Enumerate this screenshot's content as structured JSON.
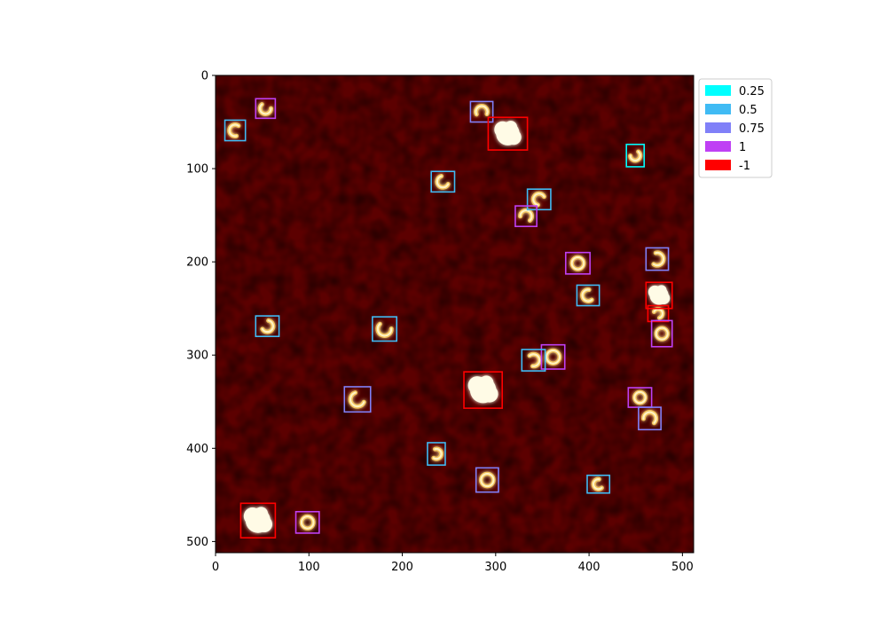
{
  "chart_data": {
    "type": "image",
    "title": "",
    "xlabel": "",
    "ylabel": "",
    "xlim": [
      0,
      512
    ],
    "ylim": [
      512,
      0
    ],
    "x_ticks": [
      "0",
      "100",
      "200",
      "300",
      "400",
      "500"
    ],
    "y_ticks": [
      "0",
      "100",
      "200",
      "300",
      "400",
      "500"
    ],
    "x_tick_values": [
      0,
      100,
      200,
      300,
      400,
      500
    ],
    "y_tick_values": [
      0,
      100,
      200,
      300,
      400,
      500
    ],
    "background_color": "#5c0000",
    "legend": {
      "placement": "upper-right-outside",
      "entries": [
        {
          "label": "0.25",
          "color": "#00ffff"
        },
        {
          "label": "0.5",
          "color": "#40bbf4"
        },
        {
          "label": "0.75",
          "color": "#8080f8"
        },
        {
          "label": "1",
          "color": "#bf40f4"
        },
        {
          "label": "-1",
          "color": "#ff0000"
        }
      ]
    },
    "boxes": [
      {
        "x0": 43,
        "y0": 25,
        "x1": 64,
        "y1": 46,
        "label": "1",
        "shape": "arc"
      },
      {
        "x0": 10,
        "y0": 48,
        "x1": 32,
        "y1": 70,
        "label": "0.5",
        "shape": "arc"
      },
      {
        "x0": 273,
        "y0": 28,
        "x1": 297,
        "y1": 50,
        "label": "0.75",
        "shape": "arc"
      },
      {
        "x0": 292,
        "y0": 45,
        "x1": 334,
        "y1": 80,
        "label": "-1",
        "shape": "blob"
      },
      {
        "x0": 440,
        "y0": 74,
        "x1": 459,
        "y1": 98,
        "label": "0.25",
        "shape": "arc"
      },
      {
        "x0": 231,
        "y0": 103,
        "x1": 256,
        "y1": 125,
        "label": "0.5",
        "shape": "arc"
      },
      {
        "x0": 334,
        "y0": 122,
        "x1": 359,
        "y1": 144,
        "label": "0.5",
        "shape": "arc"
      },
      {
        "x0": 321,
        "y0": 140,
        "x1": 344,
        "y1": 162,
        "label": "1",
        "shape": "arc"
      },
      {
        "x0": 461,
        "y0": 185,
        "x1": 485,
        "y1": 209,
        "label": "0.75",
        "shape": "arc"
      },
      {
        "x0": 375,
        "y0": 190,
        "x1": 401,
        "y1": 213,
        "label": "1",
        "shape": "ring"
      },
      {
        "x0": 387,
        "y0": 225,
        "x1": 411,
        "y1": 247,
        "label": "0.5",
        "shape": "arc"
      },
      {
        "x0": 461,
        "y0": 222,
        "x1": 489,
        "y1": 250,
        "label": "-1",
        "shape": "blob"
      },
      {
        "x0": 463,
        "y0": 247,
        "x1": 485,
        "y1": 264,
        "label": "-1",
        "shape": "arc"
      },
      {
        "x0": 43,
        "y0": 258,
        "x1": 68,
        "y1": 280,
        "label": "0.5",
        "shape": "arc"
      },
      {
        "x0": 168,
        "y0": 259,
        "x1": 194,
        "y1": 285,
        "label": "0.5",
        "shape": "arc"
      },
      {
        "x0": 467,
        "y0": 263,
        "x1": 489,
        "y1": 291,
        "label": "1",
        "shape": "ring"
      },
      {
        "x0": 349,
        "y0": 289,
        "x1": 374,
        "y1": 315,
        "label": "1",
        "shape": "ring"
      },
      {
        "x0": 328,
        "y0": 294,
        "x1": 353,
        "y1": 317,
        "label": "0.5",
        "shape": "arc"
      },
      {
        "x0": 266,
        "y0": 318,
        "x1": 307,
        "y1": 357,
        "label": "-1",
        "shape": "blob"
      },
      {
        "x0": 138,
        "y0": 334,
        "x1": 166,
        "y1": 361,
        "label": "0.75",
        "shape": "arc"
      },
      {
        "x0": 442,
        "y0": 335,
        "x1": 467,
        "y1": 356,
        "label": "1",
        "shape": "ring"
      },
      {
        "x0": 453,
        "y0": 356,
        "x1": 477,
        "y1": 380,
        "label": "0.75",
        "shape": "arc"
      },
      {
        "x0": 227,
        "y0": 394,
        "x1": 246,
        "y1": 418,
        "label": "0.5",
        "shape": "arc"
      },
      {
        "x0": 279,
        "y0": 421,
        "x1": 303,
        "y1": 447,
        "label": "0.75",
        "shape": "ring"
      },
      {
        "x0": 398,
        "y0": 429,
        "x1": 422,
        "y1": 448,
        "label": "0.5",
        "shape": "arc"
      },
      {
        "x0": 27,
        "y0": 459,
        "x1": 64,
        "y1": 496,
        "label": "-1",
        "shape": "blob"
      },
      {
        "x0": 86,
        "y0": 468,
        "x1": 111,
        "y1": 491,
        "label": "1",
        "shape": "ring"
      }
    ]
  }
}
